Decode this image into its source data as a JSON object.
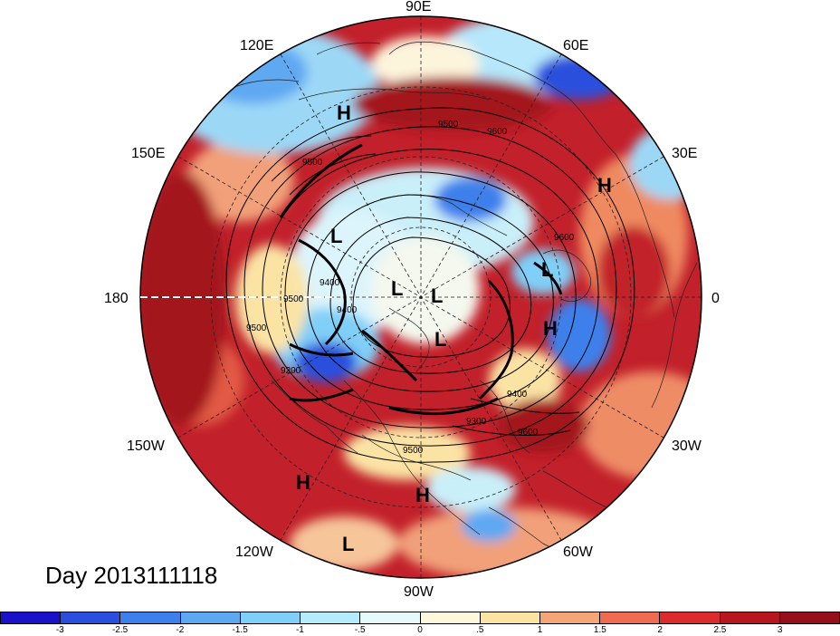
{
  "title": "Day 2013111118",
  "longitude_labels": [
    {
      "key": "90e",
      "text": "90E"
    },
    {
      "key": "60e",
      "text": "60E"
    },
    {
      "key": "30e",
      "text": "30E"
    },
    {
      "key": "0",
      "text": "0"
    },
    {
      "key": "30w",
      "text": "30W"
    },
    {
      "key": "60w",
      "text": "60W"
    },
    {
      "key": "90w",
      "text": "90W"
    },
    {
      "key": "120w",
      "text": "120W"
    },
    {
      "key": "150w",
      "text": "150W"
    },
    {
      "key": "180",
      "text": "180"
    },
    {
      "key": "150e",
      "text": "150E"
    },
    {
      "key": "120e",
      "text": "120E"
    }
  ],
  "pressure_centers": [
    {
      "type": "H",
      "text": "H"
    },
    {
      "type": "H",
      "text": "H"
    },
    {
      "type": "H",
      "text": "H"
    },
    {
      "type": "H",
      "text": "H"
    },
    {
      "type": "H",
      "text": "H"
    },
    {
      "type": "L",
      "text": "L"
    },
    {
      "type": "L",
      "text": "L"
    },
    {
      "type": "L",
      "text": "L"
    },
    {
      "type": "L",
      "text": "L"
    },
    {
      "type": "L",
      "text": "L"
    },
    {
      "type": "L",
      "text": "L"
    }
  ],
  "contour_labels": [
    "9500",
    "9600",
    "9500",
    "9600",
    "9400",
    "9500",
    "9400",
    "9200",
    "9300",
    "9400",
    "9500",
    "9600",
    "9500"
  ],
  "colorbar": {
    "colors": [
      "#1a12c9",
      "#2a4fdd",
      "#3d80ec",
      "#5ea8f2",
      "#80cff8",
      "#b4ecfb",
      "#e6f9fb",
      "#fdf8dc",
      "#fbe3a4",
      "#f4a679",
      "#ef6b51",
      "#dc2b2c",
      "#b8161f",
      "#96101c"
    ],
    "tick_labels": [
      "-3",
      "-2.5",
      "-2",
      "-1.5",
      "-1",
      "-.5",
      "0",
      ".5",
      "1",
      "1.5",
      "2",
      "2.5",
      "3"
    ]
  }
}
